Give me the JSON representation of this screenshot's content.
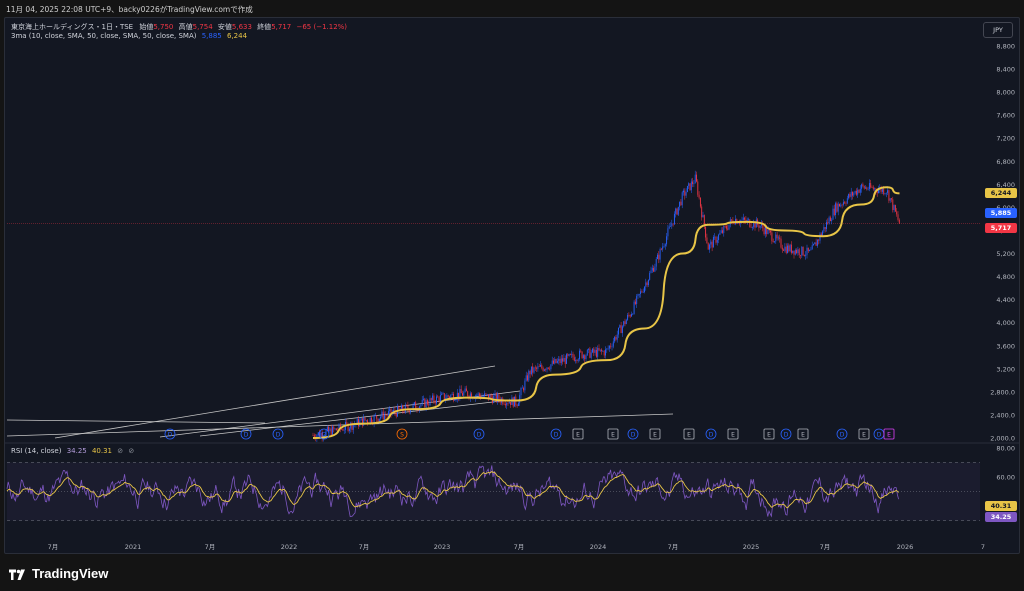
{
  "header": {
    "caption": "11月 04, 2025 22:08 UTC+9、backy0226がTradingView.comで作成"
  },
  "legend": {
    "symbol_line": "東京海上ホールディングス・1日・TSE",
    "open_label": "始値",
    "open_value": "5,750",
    "high_label": "高値",
    "high_value": "5,754",
    "low_label": "安値",
    "low_value": "5,633",
    "close_label": "終値",
    "close_value": "5,717",
    "change": "−65 (−1.12%)",
    "ma_label": "3ma (10, close, SMA, 50, close, SMA, 50, close, SMA)",
    "ma_value_1": "5,885",
    "ma_value_2": "6,244"
  },
  "rsi_legend": {
    "label": "RSI (14, close)",
    "value_1": "34.25",
    "value_2": "40.31",
    "icon_1": "⊘",
    "icon_2": "⊘"
  },
  "currency_button": "JPY",
  "price_axis": [
    "8,800",
    "8,400",
    "8,000",
    "7,600",
    "7,200",
    "6,800",
    "6,400",
    "6,000",
    "5,600",
    "5,200",
    "4,800",
    "4,400",
    "4,000",
    "3,600",
    "3,200",
    "2,800.0",
    "2,400.0",
    "2,000.0"
  ],
  "price_tags": [
    {
      "text": "6,244",
      "color": "#e8c547",
      "text_color": "#131722"
    },
    {
      "text": "5,885",
      "color": "#2962ff",
      "text_color": "#ffffff"
    },
    {
      "text": "5,717",
      "color": "#f23645",
      "text_color": "#ffffff"
    }
  ],
  "rsi_axis": [
    "80.00",
    "60.00"
  ],
  "rsi_tags": [
    {
      "text": "40.31",
      "color": "#e8c547",
      "text_color": "#131722"
    },
    {
      "text": "34.25",
      "color": "#7e57c2",
      "text_color": "#ffffff"
    }
  ],
  "time_axis": [
    "7月",
    "2021",
    "7月",
    "2022",
    "7月",
    "2023",
    "7月",
    "2024",
    "7月",
    "2025",
    "7月",
    "2026",
    "7"
  ],
  "event_markers": [
    "D",
    "D",
    "D",
    "D",
    "S",
    "D",
    "D",
    "E",
    "E",
    "D",
    "E",
    "E",
    "D",
    "E",
    "E",
    "D",
    "E",
    "D",
    "E",
    "D",
    "E"
  ],
  "chart_data": {
    "type": "line",
    "price_scale": {
      "min": 2000,
      "max": 8800
    },
    "rsi_scale": {
      "min": 20,
      "max": 80,
      "levels": [
        70,
        50,
        30
      ]
    },
    "price_series": [
      {
        "date": "2022-01",
        "price": 2050
      },
      {
        "date": "2022-03",
        "price": 2150
      },
      {
        "date": "2022-05",
        "price": 2300
      },
      {
        "date": "2022-07",
        "price": 2420
      },
      {
        "date": "2022-09",
        "price": 2550
      },
      {
        "date": "2022-11",
        "price": 2700
      },
      {
        "date": "2023-01",
        "price": 2780
      },
      {
        "date": "2023-03",
        "price": 2700
      },
      {
        "date": "2023-05",
        "price": 2620
      },
      {
        "date": "2023-06",
        "price": 3150
      },
      {
        "date": "2023-08",
        "price": 3300
      },
      {
        "date": "2023-10",
        "price": 3450
      },
      {
        "date": "2023-12",
        "price": 3500
      },
      {
        "date": "2024-02",
        "price": 4200
      },
      {
        "date": "2024-04",
        "price": 5100
      },
      {
        "date": "2024-06",
        "price": 6200
      },
      {
        "date": "2024-07",
        "price": 6500
      },
      {
        "date": "2024-08",
        "price": 5300
      },
      {
        "date": "2024-10",
        "price": 5800
      },
      {
        "date": "2024-12",
        "price": 5700
      },
      {
        "date": "2025-02",
        "price": 5300
      },
      {
        "date": "2025-04",
        "price": 5200
      },
      {
        "date": "2025-06",
        "price": 6000
      },
      {
        "date": "2025-08",
        "price": 6350
      },
      {
        "date": "2025-10",
        "price": 6300
      },
      {
        "date": "2025-11",
        "price": 5717
      }
    ],
    "ma_series": [
      {
        "date": "2022-01",
        "price": 2000
      },
      {
        "date": "2022-05",
        "price": 2250
      },
      {
        "date": "2022-09",
        "price": 2500
      },
      {
        "date": "2023-01",
        "price": 2700
      },
      {
        "date": "2023-05",
        "price": 2650
      },
      {
        "date": "2023-08",
        "price": 3100
      },
      {
        "date": "2023-12",
        "price": 3350
      },
      {
        "date": "2024-03",
        "price": 3900
      },
      {
        "date": "2024-06",
        "price": 5200
      },
      {
        "date": "2024-08",
        "price": 5700
      },
      {
        "date": "2024-11",
        "price": 5750
      },
      {
        "date": "2025-02",
        "price": 5600
      },
      {
        "date": "2025-05",
        "price": 5500
      },
      {
        "date": "2025-08",
        "price": 6050
      },
      {
        "date": "2025-10",
        "price": 6350
      },
      {
        "date": "2025-11",
        "price": 6244
      }
    ]
  },
  "footer": {
    "brand": "TradingView"
  },
  "colors": {
    "bg": "#131722",
    "up": "#2962ff",
    "down": "#f23645",
    "ma": "#e8c547",
    "rsi": "#7e57c2",
    "rsi_ma": "#e8c547"
  }
}
